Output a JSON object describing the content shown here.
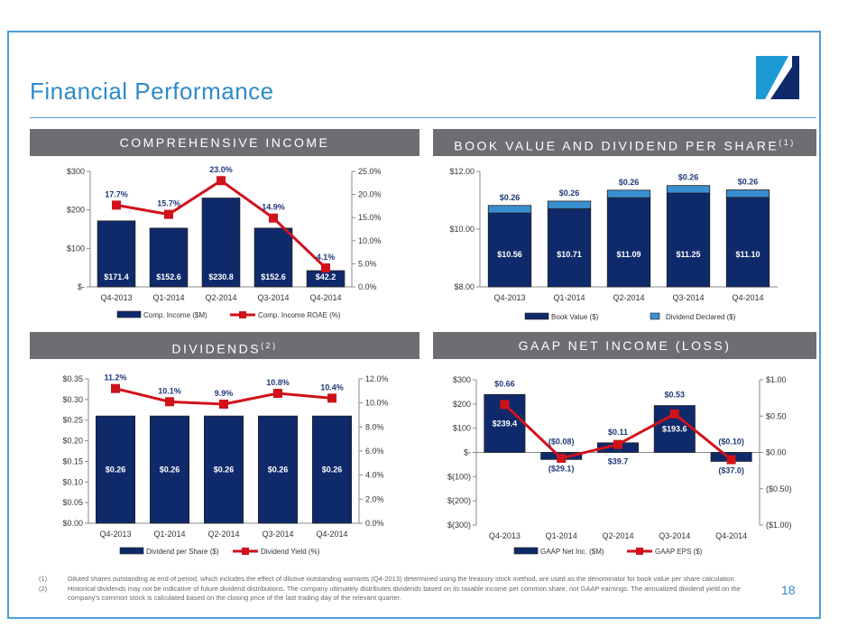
{
  "title": "Financial Performance",
  "page_number": "18",
  "sections": {
    "comprehensive_income": "COMPREHENSIVE INCOME",
    "book_value": "BOOK VALUE AND DIVIDEND PER SHARE",
    "book_value_note": "(1)",
    "dividends": "DIVIDENDS",
    "dividends_note": "(2)",
    "gaap": "GAAP NET INCOME (LOSS)"
  },
  "footnotes": [
    {
      "num": "(1)",
      "text": "Diluted shares outstanding at end of period, which includes the effect of dilutive outstanding warrants (Q4-2013) determined using the treasury stock method, are used as the denominator for book value per share calculation."
    },
    {
      "num": "(2)",
      "text": "Historical dividends may not be indicative of future dividend distributions.  The company ultimately distributes dividends based on its taxable income per common share, not GAAP earnings. The annualized dividend yield on the company's common stock is calculated based on the closing price of the last trading day of the relevant quarter."
    }
  ],
  "colors": {
    "bar": "#0f2a6b",
    "line": "#d0121b",
    "dividend_bar": "#3a8fd0",
    "accent": "#2e8bc9",
    "section": "#6d6e71"
  },
  "chart_data": [
    {
      "type": "bar+line",
      "categories": [
        "Q4-2013",
        "Q1-2014",
        "Q2-2014",
        "Q3-2014",
        "Q4-2014"
      ],
      "bars": {
        "name": "Comp. Income ($M)",
        "values": [
          171.4,
          152.6,
          230.8,
          152.6,
          42.2
        ],
        "labels": [
          "$171.4",
          "$152.6",
          "$230.8",
          "$152.6",
          "$42.2"
        ]
      },
      "line": {
        "name": "Comp. Income ROAE (%)",
        "values": [
          17.7,
          15.7,
          23.0,
          14.9,
          4.1
        ],
        "labels": [
          "17.7%",
          "15.7%",
          "23.0%",
          "14.9%",
          "4.1%"
        ]
      },
      "ylim": [
        0,
        300
      ],
      "yticks": [
        "$-",
        "$100",
        "$200",
        "$300"
      ],
      "y2lim": [
        0,
        25
      ],
      "y2ticks": [
        "0.0%",
        "5.0%",
        "10.0%",
        "15.0%",
        "20.0%",
        "25.0%"
      ],
      "legend": "bottom"
    },
    {
      "type": "stacked-bar",
      "categories": [
        "Q4-2013",
        "Q1-2014",
        "Q2-2014",
        "Q3-2014",
        "Q4-2014"
      ],
      "bars": {
        "name": "Book Value ($)",
        "values": [
          10.56,
          10.71,
          11.09,
          11.25,
          11.1
        ],
        "labels": [
          "$10.56",
          "$10.71",
          "$11.09",
          "$11.25",
          "$11.10"
        ]
      },
      "stack": {
        "name": "Dividend Declared ($)",
        "values": [
          0.26,
          0.26,
          0.26,
          0.26,
          0.26
        ],
        "labels": [
          "$0.26",
          "$0.26",
          "$0.26",
          "$0.26",
          "$0.26"
        ]
      },
      "ylim": [
        8,
        12
      ],
      "yticks": [
        "$8.00",
        "$10.00",
        "$12.00"
      ],
      "legend": "bottom"
    },
    {
      "type": "bar+line",
      "categories": [
        "Q4-2013",
        "Q1-2014",
        "Q2-2014",
        "Q3-2014",
        "Q4-2014"
      ],
      "bars": {
        "name": "Dividend per Share ($)",
        "values": [
          0.26,
          0.26,
          0.26,
          0.26,
          0.26
        ],
        "labels": [
          "$0.26",
          "$0.26",
          "$0.26",
          "$0.26",
          "$0.26"
        ]
      },
      "line": {
        "name": "Dividend Yield (%)",
        "values": [
          11.2,
          10.1,
          9.9,
          10.8,
          10.4
        ],
        "labels": [
          "11.2%",
          "10.1%",
          "9.9%",
          "10.8%",
          "10.4%"
        ]
      },
      "ylim": [
        0,
        0.35
      ],
      "yticks": [
        "$0.00",
        "$0.05",
        "$0.10",
        "$0.15",
        "$0.20",
        "$0.25",
        "$0.30",
        "$0.35"
      ],
      "y2lim": [
        0,
        12
      ],
      "y2ticks": [
        "0.0%",
        "2.0%",
        "4.0%",
        "6.0%",
        "8.0%",
        "10.0%",
        "12.0%"
      ],
      "legend": "bottom"
    },
    {
      "type": "bar+line",
      "categories": [
        "Q4-2013",
        "Q1-2014",
        "Q2-2014",
        "Q3-2014",
        "Q4-2014"
      ],
      "bars": {
        "name": "GAAP Net Inc. ($M)",
        "values": [
          239.4,
          -29.1,
          39.7,
          193.6,
          -37.0
        ],
        "labels": [
          "$239.4",
          "($29.1)",
          "$39.7",
          "$193.6",
          "($37.0)"
        ]
      },
      "line": {
        "name": "GAAP EPS ($)",
        "values": [
          0.66,
          -0.08,
          0.11,
          0.53,
          -0.1
        ],
        "labels": [
          "$0.66",
          "($0.08)",
          "$0.11",
          "$0.53",
          "($0.10)"
        ]
      },
      "ylim": [
        -300,
        300
      ],
      "yticks": [
        "$(300)",
        "$(200)",
        "$(100)",
        "$-",
        "$100",
        "$200",
        "$300"
      ],
      "y2lim": [
        -1,
        1
      ],
      "y2ticks": [
        "($1.00)",
        "($0.50)",
        "$0.00",
        "$0.50",
        "$1.00"
      ],
      "legend": "bottom"
    }
  ]
}
